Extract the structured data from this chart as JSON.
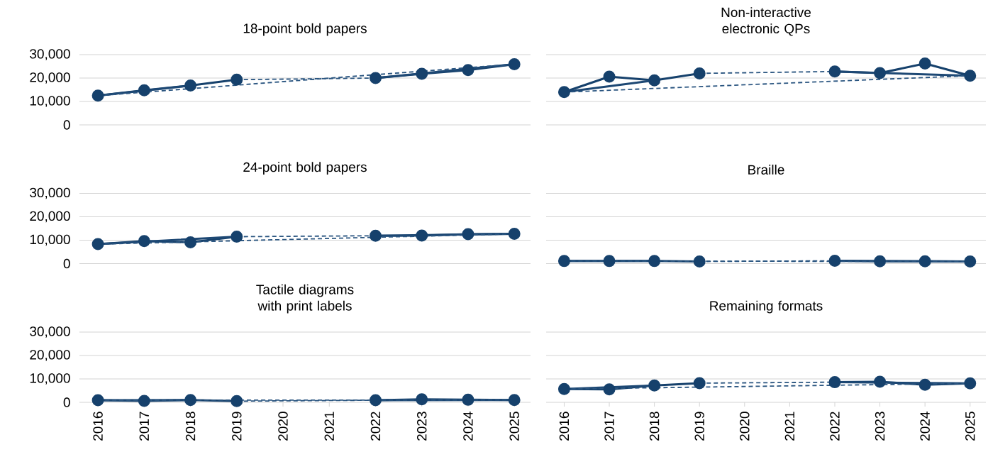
{
  "chart_data": [
    {
      "type": "line",
      "title": "18-point bold papers",
      "color": "#16416c",
      "grid": "y",
      "tick_labels": "y",
      "xlim": [
        2015.6,
        2025.35
      ],
      "ylim": [
        0,
        30000
      ],
      "xticks": [
        2016,
        2017,
        2018,
        2019,
        2020,
        2021,
        2022,
        2023,
        2024,
        2025
      ],
      "yticks": [
        0,
        {
          "value": 10000,
          "label": "10,000"
        },
        {
          "value": 20000,
          "label": "20,000"
        },
        {
          "value": 30000,
          "label": "30,000"
        }
      ],
      "series": [
        {
          "x": [
            2016,
            2017,
            2018,
            2019,
            2020,
            2021,
            2022,
            2023,
            2024,
            2025
          ],
          "values": [
            12500,
            14800,
            16800,
            19300,
            null,
            null,
            20000,
            21800,
            23400,
            25900
          ],
          "marker": "circle",
          "line_style": "solid"
        },
        {
          "x": [
            2016,
            2018,
            2020,
            2022,
            2025
          ],
          "values": [
            12500,
            16800,
            null,
            20000,
            25900
          ],
          "color": "#1d4874",
          "marker": "none",
          "line_style": "solid"
        },
        {
          "x": [
            2019,
            2022
          ],
          "values": [
            19300,
            20000
          ],
          "color": "#2a5580",
          "marker": "none",
          "line_style": "dashed"
        },
        {
          "x": [
            2016,
            2025
          ],
          "values": [
            12500,
            25900
          ],
          "color": "#2a5580",
          "marker": "none",
          "line_style": "dashed"
        }
      ]
    },
    {
      "type": "line",
      "title": "Non-interactive electronic QPs",
      "color": "#16416c",
      "grid": "y",
      "tick_labels": false,
      "xlim": [
        2015.6,
        2025.35
      ],
      "ylim": [
        0,
        30000
      ],
      "xticks": [
        2016,
        2017,
        2018,
        2019,
        2020,
        2021,
        2022,
        2023,
        2024,
        2025
      ],
      "yticks": [
        {
          "value": 0,
          "label": null
        },
        {
          "value": 10000,
          "label": null
        },
        {
          "value": 20000,
          "label": null
        },
        {
          "value": 30000,
          "label": null
        }
      ],
      "series": [
        {
          "x": [
            2016,
            2017,
            2018,
            2019,
            2020,
            2021,
            2022,
            2023,
            2024,
            2025
          ],
          "values": [
            14000,
            20600,
            19000,
            22000,
            null,
            null,
            22800,
            22100,
            26200,
            21000
          ],
          "marker": "circle",
          "line_style": "solid"
        },
        {
          "x": [
            2016,
            2018,
            2020,
            2022,
            2025
          ],
          "values": [
            14000,
            19000,
            null,
            22800,
            21000
          ],
          "color": "#1d4874",
          "marker": "none",
          "line_style": "solid"
        },
        {
          "x": [
            2019,
            2022
          ],
          "values": [
            22000,
            22800
          ],
          "color": "#2a5580",
          "marker": "none",
          "line_style": "dashed"
        },
        {
          "x": [
            2016,
            2025
          ],
          "values": [
            14000,
            21000
          ],
          "color": "#2a5580",
          "marker": "none",
          "line_style": "dashed"
        }
      ]
    },
    {
      "type": "line",
      "title": "24-point bold papers",
      "color": "#16416c",
      "grid": "y",
      "tick_labels": "y",
      "xlim": [
        2015.6,
        2025.35
      ],
      "ylim": [
        0,
        30000
      ],
      "xticks": [
        2016,
        2017,
        2018,
        2019,
        2020,
        2021,
        2022,
        2023,
        2024,
        2025
      ],
      "yticks": [
        0,
        {
          "value": 10000,
          "label": "10,000"
        },
        {
          "value": 20000,
          "label": "20,000"
        },
        {
          "value": 30000,
          "label": "30,000"
        }
      ],
      "series": [
        {
          "x": [
            2016,
            2017,
            2018,
            2019,
            2020,
            2021,
            2022,
            2023,
            2024,
            2025
          ],
          "values": [
            8300,
            9600,
            9100,
            11500,
            null,
            null,
            11900,
            12000,
            12600,
            12700
          ],
          "marker": "circle",
          "line_style": "solid"
        },
        {
          "x": [
            2016,
            2019,
            2020,
            2022,
            2025
          ],
          "values": [
            8300,
            11500,
            null,
            11900,
            12700
          ],
          "color": "#1d4874",
          "marker": "none",
          "line_style": "solid"
        },
        {
          "x": [
            2019,
            2022
          ],
          "values": [
            11500,
            11900
          ],
          "color": "#2a5580",
          "marker": "none",
          "line_style": "dashed"
        },
        {
          "x": [
            2016,
            2025
          ],
          "values": [
            8300,
            12700
          ],
          "color": "#2a5580",
          "marker": "none",
          "line_style": "dashed"
        }
      ]
    },
    {
      "type": "line",
      "title": "Braille",
      "color": "#16416c",
      "grid": "y",
      "tick_labels": false,
      "xlim": [
        2015.6,
        2025.35
      ],
      "ylim": [
        0,
        30000
      ],
      "xticks": [
        2016,
        2017,
        2018,
        2019,
        2020,
        2021,
        2022,
        2023,
        2024,
        2025
      ],
      "yticks": [
        {
          "value": 0,
          "label": null
        },
        {
          "value": 10000,
          "label": null
        },
        {
          "value": 20000,
          "label": null
        },
        {
          "value": 30000,
          "label": null
        }
      ],
      "series": [
        {
          "x": [
            2016,
            2017,
            2018,
            2019,
            2020,
            2021,
            2022,
            2023,
            2024,
            2025
          ],
          "values": [
            1100,
            1100,
            1100,
            900,
            null,
            null,
            1200,
            1000,
            1000,
            900
          ],
          "marker": "circle",
          "line_style": "solid"
        },
        {
          "x": [
            2016,
            2018,
            2020,
            2022,
            2025
          ],
          "values": [
            1100,
            1100,
            null,
            1200,
            900
          ],
          "color": "#1d4874",
          "marker": "none",
          "line_style": "solid"
        },
        {
          "x": [
            2019,
            2022
          ],
          "values": [
            900,
            1200
          ],
          "color": "#2a5580",
          "marker": "none",
          "line_style": "dashed"
        },
        {
          "x": [
            2016,
            2025
          ],
          "values": [
            1100,
            900
          ],
          "color": "#2a5580",
          "marker": "none",
          "line_style": "dashed"
        }
      ]
    },
    {
      "type": "line",
      "title": "Tactile diagrams with print labels",
      "color": "#16416c",
      "grid": "y",
      "xlim": [
        2015.6,
        2025.35
      ],
      "ylim": [
        0,
        30000
      ],
      "xticks": [
        2016,
        2017,
        2018,
        2019,
        2020,
        2021,
        2022,
        2023,
        2024,
        2025
      ],
      "yticks": [
        0,
        {
          "value": 10000,
          "label": "10,000"
        },
        {
          "value": 20000,
          "label": "20,000"
        },
        {
          "value": 30000,
          "label": "30,000"
        }
      ],
      "series": [
        {
          "x": [
            2016,
            2017,
            2018,
            2019,
            2020,
            2021,
            2022,
            2023,
            2024,
            2025
          ],
          "values": [
            900,
            600,
            1000,
            500,
            null,
            null,
            900,
            1300,
            1100,
            1000
          ],
          "marker": "circle",
          "line_style": "solid"
        },
        {
          "x": [
            2016,
            2018,
            2020,
            2022,
            2025
          ],
          "values": [
            900,
            1000,
            null,
            900,
            1000
          ],
          "color": "#1d4874",
          "marker": "none",
          "line_style": "solid"
        },
        {
          "x": [
            2019,
            2022
          ],
          "values": [
            500,
            900
          ],
          "color": "#2a5580",
          "marker": "none",
          "line_style": "dashed"
        },
        {
          "x": [
            2016,
            2025
          ],
          "values": [
            900,
            1000
          ],
          "color": "#2a5580",
          "marker": "none",
          "line_style": "dashed"
        }
      ]
    },
    {
      "type": "line",
      "title": "Remaining formats",
      "color": "#16416c",
      "grid": "y",
      "tick_labels": "x",
      "xlim": [
        2015.6,
        2025.35
      ],
      "ylim": [
        0,
        30000
      ],
      "xticks": [
        2016,
        2017,
        2018,
        2019,
        2020,
        2021,
        2022,
        2023,
        2024,
        2025
      ],
      "yticks": [
        {
          "value": 0,
          "label": null
        },
        {
          "value": 10000,
          "label": null
        },
        {
          "value": 20000,
          "label": null
        },
        {
          "value": 30000,
          "label": null
        }
      ],
      "series": [
        {
          "x": [
            2016,
            2017,
            2018,
            2019,
            2020,
            2021,
            2022,
            2023,
            2024,
            2025
          ],
          "values": [
            5700,
            5500,
            7200,
            8200,
            null,
            null,
            8600,
            8800,
            7500,
            8100
          ],
          "marker": "circle",
          "line_style": "solid"
        },
        {
          "x": [
            2016,
            2018,
            2020,
            2022,
            2025
          ],
          "values": [
            5700,
            7200,
            null,
            8600,
            8100
          ],
          "color": "#1d4874",
          "marker": "none",
          "line_style": "solid"
        },
        {
          "x": [
            2019,
            2022
          ],
          "values": [
            8200,
            8600
          ],
          "color": "#2a5580",
          "marker": "none",
          "line_style": "dashed"
        },
        {
          "x": [
            2016,
            2025
          ],
          "values": [
            5700,
            8100
          ],
          "color": "#2a5580",
          "marker": "none",
          "line_style": "dashed"
        }
      ]
    }
  ]
}
